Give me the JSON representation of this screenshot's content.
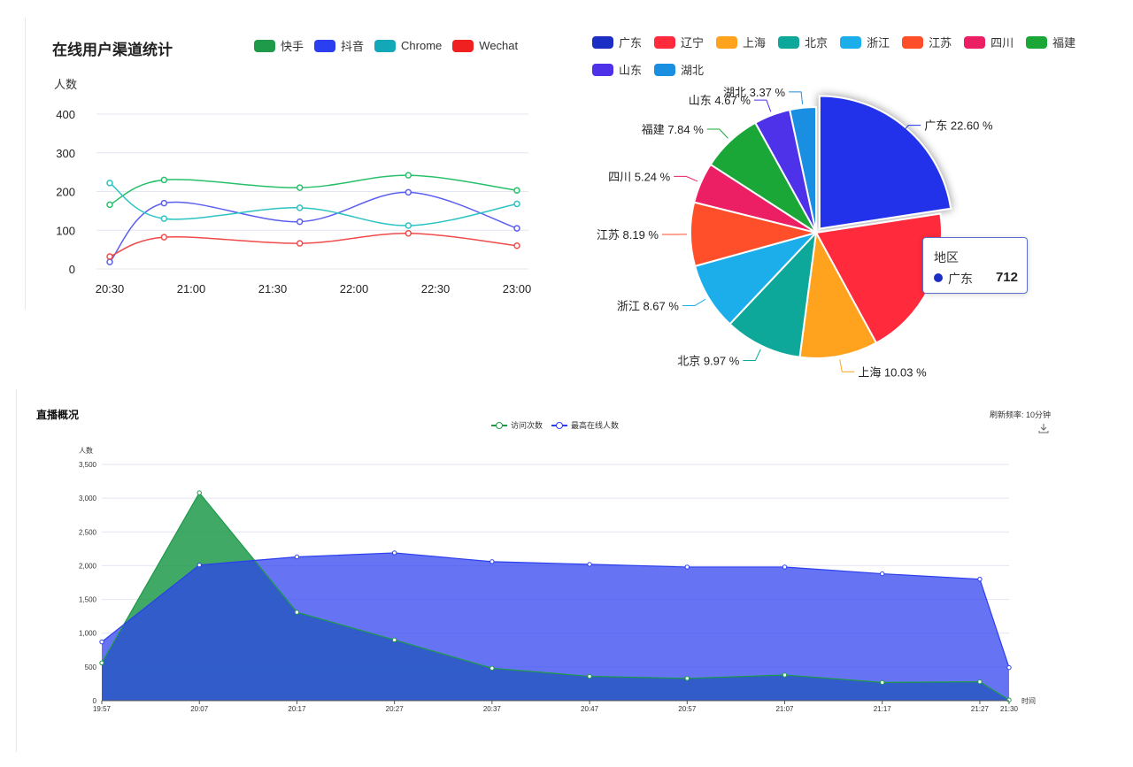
{
  "line_panel": {
    "title": "在线用户渠道统计",
    "legend": [
      {
        "name": "快手",
        "color": "#1e9a4a"
      },
      {
        "name": "抖音",
        "color": "#2b3ff0"
      },
      {
        "name": "Chrome",
        "color": "#13a8b8"
      },
      {
        "name": "Wechat",
        "color": "#f02020"
      }
    ]
  },
  "pie_panel": {
    "legend": [
      {
        "name": "广东",
        "color": "#1d2ec4"
      },
      {
        "name": "辽宁",
        "color": "#ff2a3c"
      },
      {
        "name": "上海",
        "color": "#ffa31f"
      },
      {
        "name": "北京",
        "color": "#0ea89a"
      },
      {
        "name": "浙江",
        "color": "#1caeea"
      },
      {
        "name": "江苏",
        "color": "#ff4e2a"
      },
      {
        "name": "四川",
        "color": "#ec1f64"
      },
      {
        "name": "福建",
        "color": "#1aa737"
      },
      {
        "name": "山东",
        "color": "#4d32ea"
      },
      {
        "name": "湖北",
        "color": "#1a8ee0"
      }
    ],
    "tooltip": {
      "title": "地区",
      "label": "广东",
      "value": "712",
      "color": "#1d2ec4"
    }
  },
  "area_panel": {
    "title": "直播概况",
    "refresh_text": "刷新频率: 10分钟",
    "download_icon": "download-icon",
    "legend": [
      {
        "name": "访问次数",
        "color": "#1e9a4a"
      },
      {
        "name": "最高在线人数",
        "color": "#2b3ff0"
      }
    ]
  },
  "chart_data": [
    {
      "type": "line",
      "title": "在线用户渠道统计",
      "ylabel": "人数",
      "xlabel": "",
      "ylim": [
        0,
        400
      ],
      "yticks": [
        "0",
        "100",
        "200",
        "300",
        "400"
      ],
      "xticks": [
        "20:30",
        "21:00",
        "21:30",
        "22:00",
        "22:30",
        "23:00"
      ],
      "grid": true,
      "legend_position": "top-right",
      "x": [
        "20:30",
        "20:50",
        "21:40",
        "22:20",
        "23:00"
      ],
      "series": [
        {
          "name": "快手",
          "color": "#27c06a",
          "values": [
            166,
            230,
            210,
            242,
            203
          ]
        },
        {
          "name": "抖音",
          "color": "#5b5ff0",
          "values": [
            18,
            170,
            122,
            198,
            105
          ]
        },
        {
          "name": "Chrome",
          "color": "#2cc3c3",
          "values": [
            222,
            130,
            158,
            112,
            168
          ]
        },
        {
          "name": "Wechat",
          "color": "#ef4b4b",
          "values": [
            32,
            82,
            66,
            92,
            60
          ]
        }
      ]
    },
    {
      "type": "pie",
      "legend_position": "top",
      "slices": [
        {
          "name": "广东",
          "percent": 22.6,
          "label": "广东 22.60 %",
          "color": "#2233ea"
        },
        {
          "name": "辽宁",
          "percent": 19.48,
          "label": "",
          "color": "#ff2a3c"
        },
        {
          "name": "上海",
          "percent": 10.03,
          "label": "上海 10.03 %",
          "color": "#ffa31f"
        },
        {
          "name": "北京",
          "percent": 9.97,
          "label": "北京 9.97 %",
          "color": "#0ea89a"
        },
        {
          "name": "浙江",
          "percent": 8.67,
          "label": "浙江 8.67 %",
          "color": "#1caeea"
        },
        {
          "name": "江苏",
          "percent": 8.19,
          "label": "江苏 8.19 %",
          "color": "#ff4e2a"
        },
        {
          "name": "四川",
          "percent": 5.24,
          "label": "四川 5.24 %",
          "color": "#ec1f64"
        },
        {
          "name": "福建",
          "percent": 7.84,
          "label": "福建 7.84 %",
          "color": "#1aa737"
        },
        {
          "name": "山东",
          "percent": 4.67,
          "label": "山东 4.67 %",
          "color": "#4d32ea"
        },
        {
          "name": "湖北",
          "percent": 3.37,
          "label": "湖北 3.37 %",
          "color": "#1a8ee0"
        }
      ],
      "highlighted": "广东"
    },
    {
      "type": "area",
      "title": "直播概况",
      "ylabel": "人数",
      "xlabel": "时间",
      "ylim": [
        0,
        3500
      ],
      "yticks": [
        "0",
        "500",
        "1,000",
        "1,500",
        "2,000",
        "2,500",
        "3,000",
        "3,500"
      ],
      "grid": true,
      "legend_position": "top-center",
      "categories": [
        "19:57",
        "20:07",
        "20:17",
        "20:27",
        "20:37",
        "20:47",
        "20:57",
        "21:07",
        "21:17",
        "21:27",
        "21:30"
      ],
      "series": [
        {
          "name": "访问次数",
          "color": "#1e9a4a",
          "values": [
            560,
            3080,
            1310,
            900,
            480,
            360,
            330,
            380,
            270,
            280,
            10
          ]
        },
        {
          "name": "最高在线人数",
          "color": "#2b3ff0",
          "values": [
            870,
            2010,
            2130,
            2190,
            2060,
            2020,
            1980,
            1980,
            1880,
            1800,
            490
          ]
        }
      ]
    }
  ]
}
